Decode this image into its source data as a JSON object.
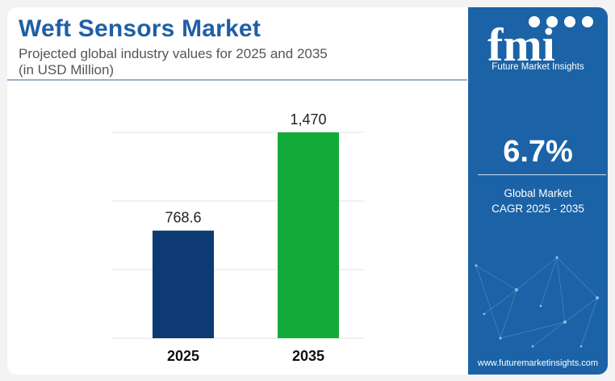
{
  "header": {
    "title": "Weft Sensors Market",
    "subtitle_line1": "Projected global industry values for 2025 and 2035",
    "subtitle_line2": "(in USD Million)"
  },
  "chart_data": {
    "type": "bar",
    "categories": [
      "2025",
      "2035"
    ],
    "values": [
      768.6,
      1470
    ],
    "value_labels": [
      "768.6",
      "1,470"
    ],
    "colors": [
      "#0d3a73",
      "#12ab3a"
    ],
    "ylim": [
      0,
      1470
    ],
    "grid": true,
    "xlabel": "",
    "ylabel": ""
  },
  "sidebar": {
    "logo_text": "fmi",
    "brand": "Future Market Insights",
    "cagr_value": "6.7%",
    "cagr_label_line1": "Global Market",
    "cagr_label_line2": "CAGR 2025 - 2035",
    "url": "www.futuremarketinsights.com"
  },
  "colors": {
    "title": "#1f5fa6",
    "sidebar_bg": "#1b63a6",
    "bottom_bar": [
      "#2e7d32",
      "#7cb342",
      "#e65100",
      "#f57c00",
      "#1565c0"
    ]
  }
}
